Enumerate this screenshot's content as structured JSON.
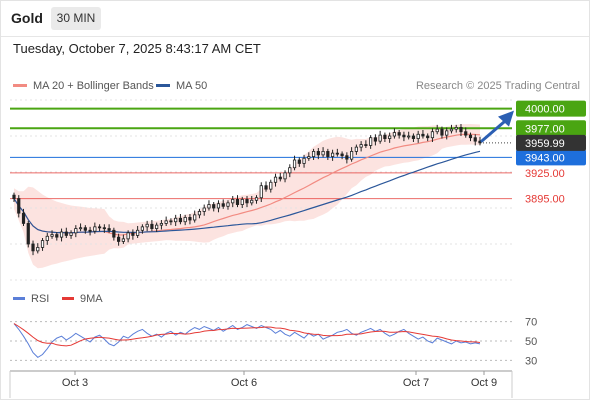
{
  "header": {
    "symbol": "Gold",
    "timeframe": "30 MIN"
  },
  "timestamp": "Tuesday, October 7, 2025 8:43:17 AM CET",
  "legend": [
    {
      "label": "MA 20 + Bollinger Bands",
      "color": "#f28b82"
    },
    {
      "label": "MA 50",
      "color": "#2b579a"
    }
  ],
  "credit": "Research © 2025 Trading Central",
  "rsi_legend": [
    {
      "label": "RSI",
      "color": "#5b7fd8"
    },
    {
      "label": "9MA",
      "color": "#e53935"
    }
  ],
  "chart_data": [
    {
      "type": "candlestick",
      "title": "Gold",
      "timeframe": "30 MIN",
      "ylim": [
        3800,
        4010
      ],
      "x_ticks": [
        "Oct 3",
        "Oct 6",
        "Oct 7",
        "Oct 9"
      ],
      "last_price": 3959.99,
      "levels": [
        {
          "value": 4000.0,
          "label": "4000.00",
          "kind": "resistance",
          "color": "#4aa512"
        },
        {
          "value": 3977.0,
          "label": "3977.00",
          "kind": "resistance",
          "color": "#4aa512"
        },
        {
          "value": 3943.0,
          "label": "3943.00",
          "kind": "pivot",
          "color": "#1e6fdc"
        },
        {
          "value": 3925.0,
          "label": "3925.00",
          "kind": "support",
          "color": "#e53935"
        },
        {
          "value": 3895.0,
          "label": "3895.00",
          "kind": "support",
          "color": "#e53935"
        }
      ],
      "close_series": [
        3895,
        3878,
        3866,
        3842,
        3834,
        3838,
        3846,
        3851,
        3853,
        3850,
        3856,
        3852,
        3855,
        3860,
        3861,
        3858,
        3857,
        3862,
        3861,
        3860,
        3858,
        3850,
        3845,
        3848,
        3855,
        3852,
        3858,
        3862,
        3865,
        3860,
        3864,
        3866,
        3869,
        3868,
        3872,
        3868,
        3873,
        3870,
        3876,
        3880,
        3884,
        3888,
        3884,
        3889,
        3886,
        3890,
        3894,
        3888,
        3894,
        3890,
        3893,
        3896,
        3910,
        3906,
        3914,
        3920,
        3918,
        3925,
        3931,
        3940,
        3936,
        3942,
        3944,
        3950,
        3946,
        3950,
        3944,
        3948,
        3947,
        3945,
        3941,
        3950,
        3955,
        3958,
        3957,
        3966,
        3962,
        3969,
        3965,
        3968,
        3972,
        3969,
        3967,
        3968,
        3965,
        3970,
        3968,
        3966,
        3973,
        3976,
        3969,
        3974,
        3976,
        3978,
        3973,
        3969,
        3966,
        3962,
        3960
      ],
      "indicators": [
        "MA 20 + Bollinger Bands",
        "MA 50"
      ]
    },
    {
      "type": "line",
      "title": "RSI",
      "series": [
        {
          "name": "RSI",
          "color": "#5b7fd8"
        },
        {
          "name": "9MA",
          "color": "#e53935"
        }
      ],
      "ylim": [
        20,
        80
      ],
      "y_ticks": [
        70,
        50,
        30
      ],
      "rsi_values": [
        68,
        62,
        55,
        47,
        38,
        33,
        36,
        42,
        49,
        53,
        55,
        51,
        54,
        58,
        55,
        52,
        49,
        54,
        56,
        52,
        47,
        45,
        49,
        55,
        53,
        57,
        60,
        62,
        58,
        55,
        57,
        54,
        58,
        60,
        56,
        59,
        57,
        61,
        64,
        62,
        65,
        63,
        61,
        64,
        60,
        63,
        66,
        62,
        64,
        67,
        65,
        63,
        66,
        64,
        62,
        58,
        61,
        57,
        55,
        59,
        56,
        53,
        58,
        55,
        57,
        52,
        54,
        56,
        59,
        60,
        62,
        58,
        56,
        59,
        61,
        63,
        60,
        62,
        58,
        55,
        57,
        60,
        62,
        58,
        55,
        52,
        54,
        50,
        48,
        53,
        51,
        49,
        47,
        50,
        48,
        49,
        47,
        48,
        47
      ]
    }
  ]
}
